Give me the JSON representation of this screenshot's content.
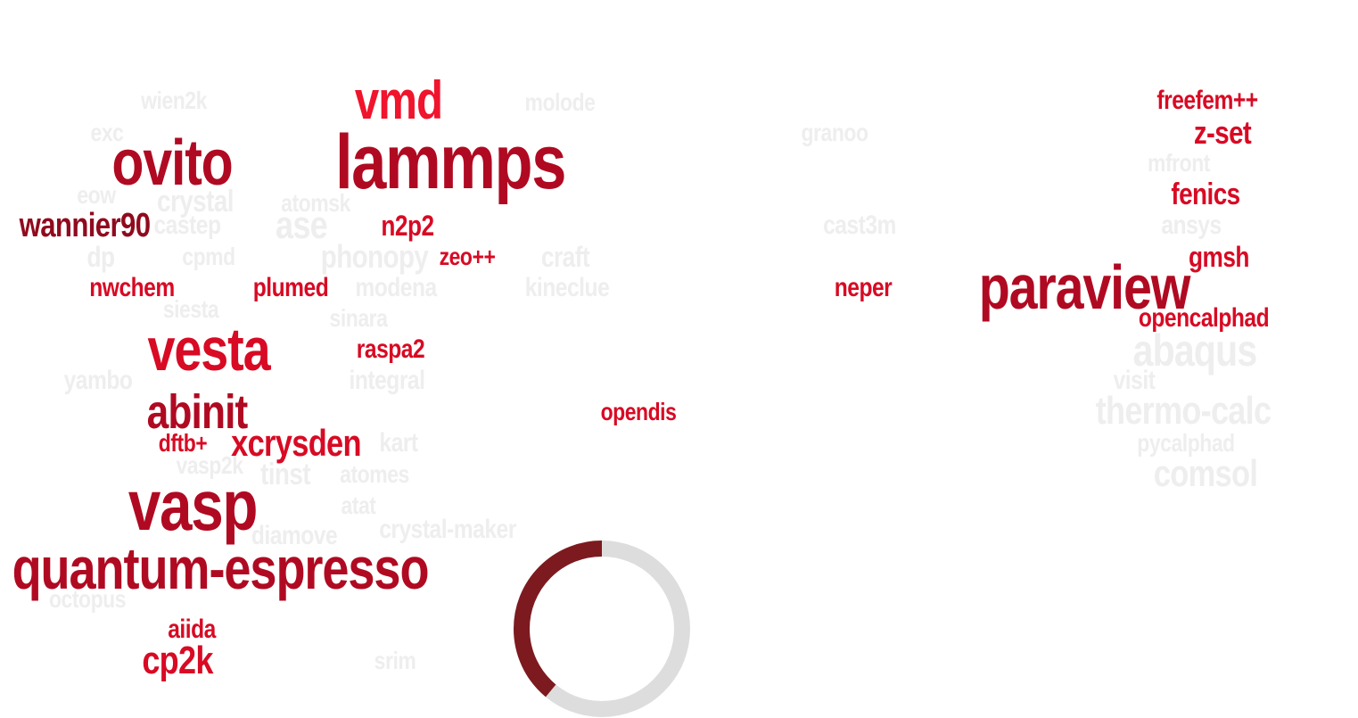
{
  "colors": {
    "active_bright": "#f0142c",
    "active_mid": "#d80a24",
    "active_dark": "#b00a22",
    "active_deep": "#900a1e",
    "faded": "#eeeeee",
    "spinner_arc": "#7d1a1f",
    "spinner_track": "#dddddd"
  },
  "words": [
    {
      "text": "wien2k",
      "tone": "faded"
    },
    {
      "text": "vmd",
      "tone": "bright"
    },
    {
      "text": "molode",
      "tone": "faded"
    },
    {
      "text": "freefem++",
      "tone": "mid"
    },
    {
      "text": "exc",
      "tone": "faded"
    },
    {
      "text": "granoo",
      "tone": "faded"
    },
    {
      "text": "z-set",
      "tone": "mid"
    },
    {
      "text": "ovito",
      "tone": "dark"
    },
    {
      "text": "lammps",
      "tone": "dark"
    },
    {
      "text": "mfront",
      "tone": "faded"
    },
    {
      "text": "eow",
      "tone": "faded"
    },
    {
      "text": "crystal",
      "tone": "faded"
    },
    {
      "text": "atomsk",
      "tone": "faded"
    },
    {
      "text": "fenics",
      "tone": "mid"
    },
    {
      "text": "wannier90",
      "tone": "deep"
    },
    {
      "text": "castep",
      "tone": "faded"
    },
    {
      "text": "ase",
      "tone": "faded"
    },
    {
      "text": "n2p2",
      "tone": "mid"
    },
    {
      "text": "cast3m",
      "tone": "faded"
    },
    {
      "text": "ansys",
      "tone": "faded"
    },
    {
      "text": "dp",
      "tone": "faded"
    },
    {
      "text": "cpmd",
      "tone": "faded"
    },
    {
      "text": "phonopy",
      "tone": "faded"
    },
    {
      "text": "zeo++",
      "tone": "mid"
    },
    {
      "text": "craft",
      "tone": "faded"
    },
    {
      "text": "gmsh",
      "tone": "mid"
    },
    {
      "text": "nwchem",
      "tone": "mid"
    },
    {
      "text": "plumed",
      "tone": "mid"
    },
    {
      "text": "modena",
      "tone": "faded"
    },
    {
      "text": "kineclue",
      "tone": "faded"
    },
    {
      "text": "neper",
      "tone": "mid"
    },
    {
      "text": "paraview",
      "tone": "dark"
    },
    {
      "text": "siesta",
      "tone": "faded"
    },
    {
      "text": "sinara",
      "tone": "faded"
    },
    {
      "text": "opencalphad",
      "tone": "mid"
    },
    {
      "text": "vesta",
      "tone": "mid"
    },
    {
      "text": "raspa2",
      "tone": "mid"
    },
    {
      "text": "abaqus",
      "tone": "faded"
    },
    {
      "text": "yambo",
      "tone": "faded"
    },
    {
      "text": "integral",
      "tone": "faded"
    },
    {
      "text": "visit",
      "tone": "faded"
    },
    {
      "text": "abinit",
      "tone": "dark"
    },
    {
      "text": "opendis",
      "tone": "mid"
    },
    {
      "text": "thermo-calc",
      "tone": "faded"
    },
    {
      "text": "dftb+",
      "tone": "mid"
    },
    {
      "text": "xcrysden",
      "tone": "mid"
    },
    {
      "text": "kart",
      "tone": "faded"
    },
    {
      "text": "pycalphad",
      "tone": "faded"
    },
    {
      "text": "vasp2k",
      "tone": "faded"
    },
    {
      "text": "tinst",
      "tone": "faded"
    },
    {
      "text": "atomes",
      "tone": "faded"
    },
    {
      "text": "comsol",
      "tone": "faded"
    },
    {
      "text": "vasp",
      "tone": "dark"
    },
    {
      "text": "atat",
      "tone": "faded"
    },
    {
      "text": "crystal-maker",
      "tone": "faded"
    },
    {
      "text": "diamove",
      "tone": "faded"
    },
    {
      "text": "quantum-espresso",
      "tone": "dark"
    },
    {
      "text": "octopus",
      "tone": "faded"
    },
    {
      "text": "aiida",
      "tone": "mid"
    },
    {
      "text": "cp2k",
      "tone": "mid"
    },
    {
      "text": "srim",
      "tone": "faded"
    }
  ],
  "progress": {
    "fraction": 0.39
  }
}
